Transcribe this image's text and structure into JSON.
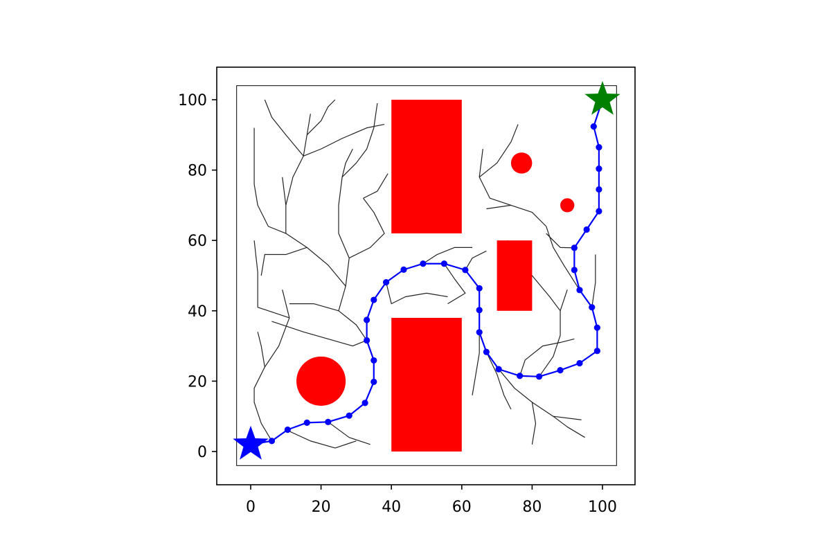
{
  "chart_data": {
    "type": "scatter",
    "title": "",
    "xlabel": "",
    "ylabel": "",
    "xlim": [
      -10,
      110
    ],
    "ylim": [
      -10,
      110
    ],
    "grid": false,
    "xticks": [
      "0",
      "20",
      "40",
      "60",
      "80",
      "100"
    ],
    "yticks": [
      "0",
      "20",
      "40",
      "60",
      "80",
      "100"
    ],
    "boundary": {
      "x": [
        -4,
        104
      ],
      "y": [
        -4,
        104
      ]
    },
    "obstacles": {
      "rectangles": [
        {
          "x": 40,
          "y": 62,
          "width": 20,
          "height": 38
        },
        {
          "x": 40,
          "y": 0,
          "width": 20,
          "height": 38
        },
        {
          "x": 70,
          "y": 40,
          "width": 10,
          "height": 20
        }
      ],
      "circles": [
        {
          "cx": 20,
          "cy": 20,
          "r": 7
        },
        {
          "cx": 77,
          "cy": 82,
          "r": 3
        },
        {
          "cx": 90,
          "cy": 70,
          "r": 2
        }
      ],
      "color": "#ff0000"
    },
    "start": {
      "x": 0,
      "y": 2,
      "color": "#0000ff"
    },
    "goal": {
      "x": 100,
      "y": 100,
      "color": "#008000"
    },
    "path": {
      "color": "#0000ff",
      "points": [
        [
          0,
          2
        ],
        [
          6,
          3
        ],
        [
          10.5,
          6.2
        ],
        [
          16,
          8.2
        ],
        [
          22,
          8.4
        ],
        [
          28,
          10.2
        ],
        [
          32.5,
          13.8
        ],
        [
          35,
          19.8
        ],
        [
          35,
          25.9
        ],
        [
          33,
          31.6
        ],
        [
          33,
          37.4
        ],
        [
          35,
          43.1
        ],
        [
          38.5,
          48.1
        ],
        [
          43.5,
          51.7
        ],
        [
          49,
          53.4
        ],
        [
          55,
          53.4
        ],
        [
          61,
          51.6
        ],
        [
          65,
          46.4
        ],
        [
          65,
          40.2
        ],
        [
          65,
          33.9
        ],
        [
          67,
          28.3
        ],
        [
          70.5,
          23.4
        ],
        [
          76.5,
          21.5
        ],
        [
          82,
          21.3
        ],
        [
          88,
          23.1
        ],
        [
          93.5,
          25.1
        ],
        [
          98.5,
          28.6
        ],
        [
          98.5,
          35.2
        ],
        [
          97,
          41
        ],
        [
          93.5,
          45.9
        ],
        [
          92,
          51.6
        ],
        [
          92,
          57.9
        ],
        [
          95.5,
          63.1
        ],
        [
          99,
          68.3
        ],
        [
          99,
          74.5
        ],
        [
          99,
          80.4
        ],
        [
          99,
          86.5
        ],
        [
          97.5,
          92.4
        ],
        [
          100,
          100
        ]
      ]
    },
    "tree": {
      "color": "#222222",
      "branches": [
        [
          [
            0,
            2
          ],
          [
            6,
            3
          ],
          [
            10.5,
            6.2
          ],
          [
            16,
            8.2
          ],
          [
            22,
            8.4
          ],
          [
            28,
            10.2
          ],
          [
            32.5,
            13.8
          ],
          [
            35,
            19.8
          ],
          [
            35,
            25.9
          ],
          [
            33,
            31.6
          ],
          [
            33,
            37.4
          ],
          [
            35,
            43.1
          ],
          [
            38.5,
            48.1
          ],
          [
            43.5,
            51.7
          ],
          [
            49,
            53.4
          ],
          [
            55,
            53.4
          ],
          [
            61,
            51.6
          ],
          [
            65,
            46.4
          ],
          [
            65,
            40.2
          ],
          [
            65,
            33.9
          ],
          [
            67,
            28.3
          ],
          [
            70.5,
            23.4
          ],
          [
            76.5,
            21.5
          ],
          [
            82,
            21.3
          ],
          [
            88,
            23.1
          ],
          [
            93.5,
            25.1
          ],
          [
            98.5,
            28.6
          ],
          [
            98.5,
            35.2
          ],
          [
            97,
            41
          ],
          [
            93.5,
            45.9
          ],
          [
            92,
            51.6
          ],
          [
            92,
            57.9
          ],
          [
            95.5,
            63.1
          ],
          [
            99,
            68.3
          ],
          [
            99,
            74.5
          ],
          [
            99,
            80.4
          ],
          [
            99,
            86.5
          ],
          [
            97.5,
            92.4
          ]
        ],
        [
          [
            6,
            3
          ],
          [
            3,
            8
          ],
          [
            1,
            14
          ],
          [
            1,
            18
          ],
          [
            4,
            24
          ],
          [
            3,
            30
          ],
          [
            2,
            34
          ]
        ],
        [
          [
            4,
            24
          ],
          [
            8,
            30
          ],
          [
            11,
            38
          ],
          [
            9,
            46
          ]
        ],
        [
          [
            11,
            38
          ],
          [
            2,
            41
          ],
          [
            2,
            51
          ],
          [
            1,
            60
          ]
        ],
        [
          [
            6,
            37
          ],
          [
            15,
            34
          ],
          [
            22,
            32
          ],
          [
            29,
            30
          ],
          [
            33,
            31.6
          ]
        ],
        [
          [
            10,
            6.2
          ],
          [
            17,
            3
          ],
          [
            24,
            1
          ],
          [
            30,
            3
          ]
        ],
        [
          [
            22,
            8.4
          ],
          [
            28,
            4
          ],
          [
            34,
            2
          ]
        ],
        [
          [
            33,
            31.6
          ],
          [
            30,
            36
          ],
          [
            25,
            40
          ],
          [
            18,
            42
          ],
          [
            11,
            42
          ]
        ],
        [
          [
            25,
            40
          ],
          [
            27,
            47
          ],
          [
            28,
            55
          ],
          [
            25,
            62
          ],
          [
            25,
            70
          ],
          [
            26,
            78
          ],
          [
            27,
            82
          ],
          [
            29,
            86
          ]
        ],
        [
          [
            27,
            47
          ],
          [
            22,
            53
          ],
          [
            16,
            58
          ],
          [
            10,
            62
          ],
          [
            10,
            70
          ],
          [
            9,
            78
          ]
        ],
        [
          [
            16,
            58
          ],
          [
            10,
            56
          ],
          [
            4,
            56
          ],
          [
            3,
            50
          ]
        ],
        [
          [
            10,
            62
          ],
          [
            5,
            64
          ],
          [
            2,
            70
          ],
          [
            1,
            76
          ],
          [
            1,
            85
          ],
          [
            1,
            92
          ]
        ],
        [
          [
            10,
            70
          ],
          [
            12,
            78
          ],
          [
            15,
            84
          ],
          [
            16,
            90
          ],
          [
            17,
            96
          ]
        ],
        [
          [
            15,
            84
          ],
          [
            10,
            90
          ],
          [
            6,
            95
          ],
          [
            4,
            100
          ]
        ],
        [
          [
            15,
            84
          ],
          [
            20,
            86
          ],
          [
            26,
            89
          ],
          [
            33,
            92
          ],
          [
            38,
            93
          ]
        ],
        [
          [
            16,
            90
          ],
          [
            20,
            94
          ],
          [
            22,
            98
          ],
          [
            24,
            100
          ]
        ],
        [
          [
            26,
            78
          ],
          [
            30,
            82
          ],
          [
            33,
            86
          ],
          [
            35,
            92
          ],
          [
            36,
            99
          ]
        ],
        [
          [
            28,
            55
          ],
          [
            34,
            58
          ],
          [
            38,
            62
          ],
          [
            35,
            68
          ],
          [
            32,
            72
          ]
        ],
        [
          [
            32,
            72
          ],
          [
            36,
            74
          ],
          [
            39,
            79
          ]
        ],
        [
          [
            38.5,
            48.1
          ],
          [
            40,
            42
          ],
          [
            44,
            44
          ],
          [
            50,
            45
          ],
          [
            56,
            44
          ]
        ],
        [
          [
            49,
            53.4
          ],
          [
            53,
            56
          ],
          [
            58,
            58
          ],
          [
            63,
            58
          ]
        ],
        [
          [
            55,
            53.4
          ],
          [
            58,
            49
          ],
          [
            61,
            45
          ],
          [
            56,
            42
          ]
        ],
        [
          [
            61,
            51.6
          ],
          [
            63,
            55
          ],
          [
            67,
            57
          ]
        ],
        [
          [
            65,
            33.9
          ],
          [
            65,
            28
          ],
          [
            64,
            22
          ],
          [
            63,
            16
          ]
        ],
        [
          [
            67,
            28.3
          ],
          [
            70,
            22
          ],
          [
            72,
            16
          ],
          [
            74,
            12
          ]
        ],
        [
          [
            70.5,
            23.4
          ],
          [
            75,
            18
          ],
          [
            80,
            14
          ],
          [
            86,
            10
          ],
          [
            94,
            9
          ]
        ],
        [
          [
            80,
            14
          ],
          [
            81,
            8
          ],
          [
            80,
            2
          ]
        ],
        [
          [
            86,
            10
          ],
          [
            90,
            7
          ],
          [
            95,
            4
          ]
        ],
        [
          [
            76.5,
            21.5
          ],
          [
            78,
            26
          ],
          [
            83,
            30
          ],
          [
            88,
            31
          ],
          [
            92,
            32
          ]
        ],
        [
          [
            82,
            21.3
          ],
          [
            86,
            27
          ],
          [
            88,
            33
          ],
          [
            88,
            40
          ],
          [
            90,
            46
          ]
        ],
        [
          [
            88,
            40
          ],
          [
            85,
            44
          ],
          [
            80,
            50
          ],
          [
            75,
            56
          ],
          [
            73,
            60
          ]
        ],
        [
          [
            93.5,
            45.9
          ],
          [
            89,
            53
          ],
          [
            86,
            58
          ],
          [
            84,
            64
          ]
        ],
        [
          [
            84,
            64
          ],
          [
            80,
            68
          ],
          [
            74,
            70
          ],
          [
            67,
            69
          ]
        ],
        [
          [
            74,
            70
          ],
          [
            68,
            72
          ],
          [
            65,
            78
          ],
          [
            66,
            86
          ]
        ],
        [
          [
            65,
            78
          ],
          [
            70,
            82
          ],
          [
            74,
            88
          ],
          [
            76,
            93
          ]
        ],
        [
          [
            92,
            57.9
          ],
          [
            88,
            58
          ],
          [
            84,
            62
          ]
        ],
        [
          [
            97,
            41
          ],
          [
            98,
            48
          ],
          [
            98,
            56
          ]
        ]
      ]
    }
  }
}
